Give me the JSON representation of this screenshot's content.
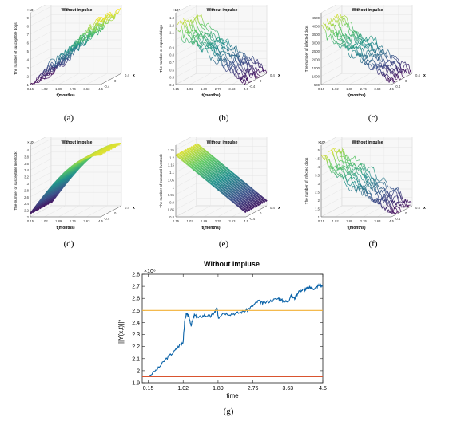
{
  "panels": [
    {
      "id": "a",
      "caption": "(a)",
      "title": "Without impulse",
      "zlabel": "The number of susceptible dogs",
      "exponent": "×10⁴",
      "zticks": [
        "1",
        "2",
        "3",
        "4",
        "5",
        "6",
        "7",
        "8",
        "9"
      ],
      "xlabel": "t(months)",
      "xticks": [
        "0.15",
        "1.02",
        "1.89",
        "2.76",
        "3.63",
        "4.5"
      ],
      "ylabel": "x",
      "yticks": [
        "0.4",
        "0",
        "-0.4"
      ],
      "shape": "rise-rough"
    },
    {
      "id": "b",
      "caption": "(b)",
      "title": "Without impulse",
      "zlabel": "The number of exposed dogs",
      "exponent": "×10⁴",
      "zticks": [
        "0.4",
        "0.5",
        "0.6",
        "0.7",
        "0.8",
        "0.9",
        "1",
        "1.1",
        "1.2",
        "1.3"
      ],
      "xlabel": "t(months)",
      "xticks": [
        "0.15",
        "1.02",
        "1.89",
        "2.76",
        "3.63",
        "4.5"
      ],
      "ylabel": "x",
      "yticks": [
        "0.4",
        "0",
        "-0.4"
      ],
      "shape": "fall-rough"
    },
    {
      "id": "c",
      "caption": "(c)",
      "title": "Without impulse",
      "zlabel": "The number of infected dogs",
      "exponent": "",
      "zticks": [
        "500",
        "1000",
        "1500",
        "2000",
        "2500",
        "3000",
        "3500",
        "4000",
        "4500"
      ],
      "xlabel": "t(months)",
      "xticks": [
        "0.15",
        "1.02",
        "1.89",
        "2.76",
        "3.63",
        "4.5"
      ],
      "ylabel": "x",
      "yticks": [
        "0.4",
        "0",
        "-0.4"
      ],
      "shape": "fall-rough"
    },
    {
      "id": "d",
      "caption": "(d)",
      "title": "Without impulse",
      "zlabel": "The number of susceptible livestock",
      "exponent": "×10⁶",
      "zticks": [
        "2",
        "2.2",
        "2.4",
        "2.6",
        "2.8",
        "3",
        "3.2",
        "3.4",
        "3.6",
        "3.8",
        "4"
      ],
      "xlabel": "t(months)",
      "xticks": [
        "0.15",
        "1.02",
        "1.89",
        "2.76",
        "3.63",
        "4.5"
      ],
      "ylabel": "x",
      "yticks": [
        "0.4",
        "0",
        "-0.4"
      ],
      "shape": "rise-smooth"
    },
    {
      "id": "e",
      "caption": "(e)",
      "title": "Without impulse",
      "zlabel": "The number of exposed livestock",
      "exponent": "",
      "zticks": [
        "0.8",
        "0.85",
        "0.9",
        "0.95",
        "1",
        "1.05",
        "1.1",
        "1.15",
        "1.2",
        "1.25"
      ],
      "xlabel": "t(months)",
      "xticks": [
        "0.15",
        "1.02",
        "1.89",
        "2.76",
        "3.63",
        "4.5"
      ],
      "ylabel": "x",
      "yticks": [
        "0.4",
        "0",
        "-0.4"
      ],
      "shape": "fall-smooth"
    },
    {
      "id": "f",
      "caption": "(f)",
      "title": "Without impulse",
      "zlabel": "The number of infected dogs",
      "exponent": "×10⁴",
      "zticks": [
        "1",
        "1.5",
        "2",
        "2.5",
        "3",
        "3.5",
        "4",
        "4.5",
        "5"
      ],
      "xlabel": "t(months)",
      "xticks": [
        "0.15",
        "1.02",
        "1.89",
        "2.76",
        "3.63",
        "4.5"
      ],
      "ylabel": "x",
      "yticks": [
        "0.4",
        "0",
        "-0.4"
      ],
      "shape": "fall-rough"
    }
  ],
  "chart_data": {
    "type": "line",
    "caption": "(g)",
    "title": "Without impluse",
    "xlabel": "time",
    "ylabel": "||Y(x,t)||²",
    "y_exponent": "×10⁶",
    "xlim": [
      0,
      4.5
    ],
    "ylim": [
      1.9,
      2.8
    ],
    "xticks": [
      "0.15",
      "1.02",
      "1.89",
      "2.76",
      "3.63",
      "4.5"
    ],
    "yticks": [
      "1.9",
      "2",
      "2.1",
      "2.2",
      "2.3",
      "2.4",
      "2.5",
      "2.6",
      "2.7",
      "2.8"
    ],
    "series": [
      {
        "color": "#0b63a8",
        "x": [
          0,
          0.15,
          0.4,
          0.6,
          0.8,
          0.95,
          1.02,
          1.06,
          1.1,
          1.16,
          1.22,
          1.3,
          1.4,
          1.55,
          1.7,
          1.8,
          1.86,
          1.9,
          2.0,
          2.2,
          2.4,
          2.6,
          2.76,
          2.9,
          3.0,
          3.2,
          3.4,
          3.5,
          3.63,
          3.7,
          3.8,
          3.9,
          4.0,
          4.1,
          4.2,
          4.3,
          4.4,
          4.5
        ],
        "y": [
          1.95,
          1.95,
          2.02,
          2.1,
          2.16,
          2.22,
          2.24,
          2.42,
          2.47,
          2.45,
          2.38,
          2.46,
          2.44,
          2.46,
          2.45,
          2.48,
          2.52,
          2.44,
          2.48,
          2.47,
          2.48,
          2.5,
          2.54,
          2.58,
          2.56,
          2.58,
          2.6,
          2.58,
          2.57,
          2.62,
          2.6,
          2.66,
          2.67,
          2.68,
          2.69,
          2.68,
          2.71,
          2.7
        ]
      },
      {
        "color": "#f2b134",
        "x": [
          0,
          4.5
        ],
        "y": [
          2.5,
          2.5
        ]
      },
      {
        "color": "#d9532f",
        "x": [
          0,
          4.5
        ],
        "y": [
          1.95,
          1.95
        ]
      }
    ]
  }
}
